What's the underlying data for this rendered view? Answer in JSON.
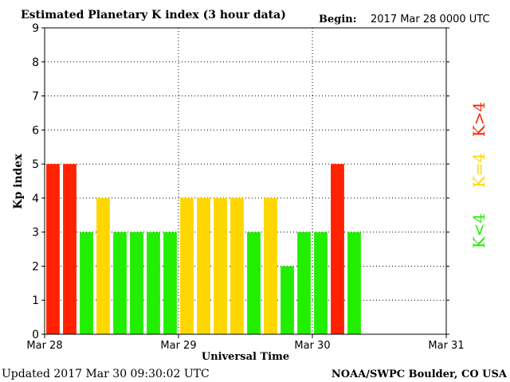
{
  "chart_data": {
    "type": "bar",
    "title": "Estimated Planetary K index (3 hour data)",
    "begin_label": "Begin:",
    "begin_value": "2017 Mar 28 0000 UTC",
    "xlabel": "Universal Time",
    "ylabel": "Kp index",
    "ylim": [
      0,
      9
    ],
    "yticks": [
      "0",
      "1",
      "2",
      "3",
      "4",
      "5",
      "6",
      "7",
      "8",
      "9"
    ],
    "xticks": [
      "Mar 28",
      "Mar 29",
      "Mar 30",
      "Mar 31"
    ],
    "slots_per_day": 8,
    "grid": "dotted",
    "values": [
      5,
      5,
      3,
      4,
      3,
      3,
      3,
      3,
      4,
      4,
      4,
      4,
      3,
      4,
      2,
      3,
      3,
      5,
      3
    ],
    "colors": {
      "low": "#22ee00",
      "mid": "#ffd700",
      "high": "#ff2200"
    },
    "legend": {
      "high": "K>4",
      "mid": "K=4",
      "low": "K<4"
    }
  },
  "footer": {
    "updated": "Updated 2017 Mar 30 09:30:02 UTC",
    "credit": "NOAA/SWPC Boulder, CO USA"
  }
}
